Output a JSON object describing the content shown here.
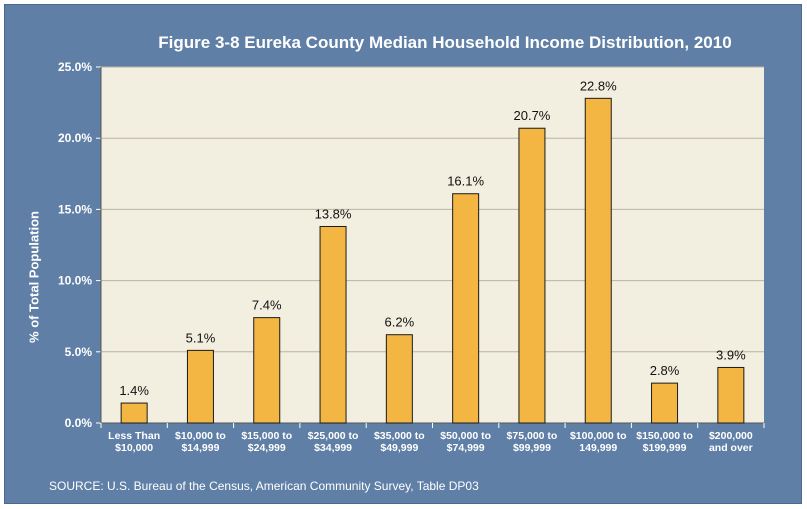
{
  "chart_data": {
    "type": "bar",
    "title": "Figure 3-8 Eureka County Median Household Income Distribution, 2010",
    "ylabel": "% of Total Population",
    "xlabel": "",
    "source": "SOURCE: U.S.  Bureau of the Census, American Community Survey, Table DP03",
    "categories": [
      [
        "Less Than",
        "$10,000"
      ],
      [
        "$10,000 to",
        "$14,999"
      ],
      [
        "$15,000 to",
        "$24,999"
      ],
      [
        "$25,000 to",
        "$34,999"
      ],
      [
        "$35,000 to",
        "$49,999"
      ],
      [
        "$50,000 to",
        "$74,999"
      ],
      [
        "$75,000 to",
        "$99,999"
      ],
      [
        "$100,000 to",
        "149,999"
      ],
      [
        "$150,000 to",
        "$199,999"
      ],
      [
        "$200,000",
        "and over"
      ]
    ],
    "values": [
      1.4,
      5.1,
      7.4,
      13.8,
      6.2,
      16.1,
      20.7,
      22.8,
      2.8,
      3.9
    ],
    "data_labels": [
      "1.4%",
      "5.1%",
      "7.4%",
      "13.8%",
      "6.2%",
      "16.1%",
      "20.7%",
      "22.8%",
      "2.8%",
      "3.9%"
    ],
    "ylim": [
      0,
      25
    ],
    "yticks": [
      0,
      5,
      10,
      15,
      20,
      25
    ],
    "ytick_labels": [
      "0.0%",
      "5.0%",
      "10.0%",
      "15.0%",
      "20.0%",
      "25.0%"
    ],
    "grid": true,
    "legend": "none",
    "colors": {
      "bar": "#f4b642",
      "bar_edge": "#1a1a1a",
      "plot_bg": "#f2eee0",
      "frame_bg": "#5f7fa6",
      "gridline": "#b9b4a4"
    }
  }
}
